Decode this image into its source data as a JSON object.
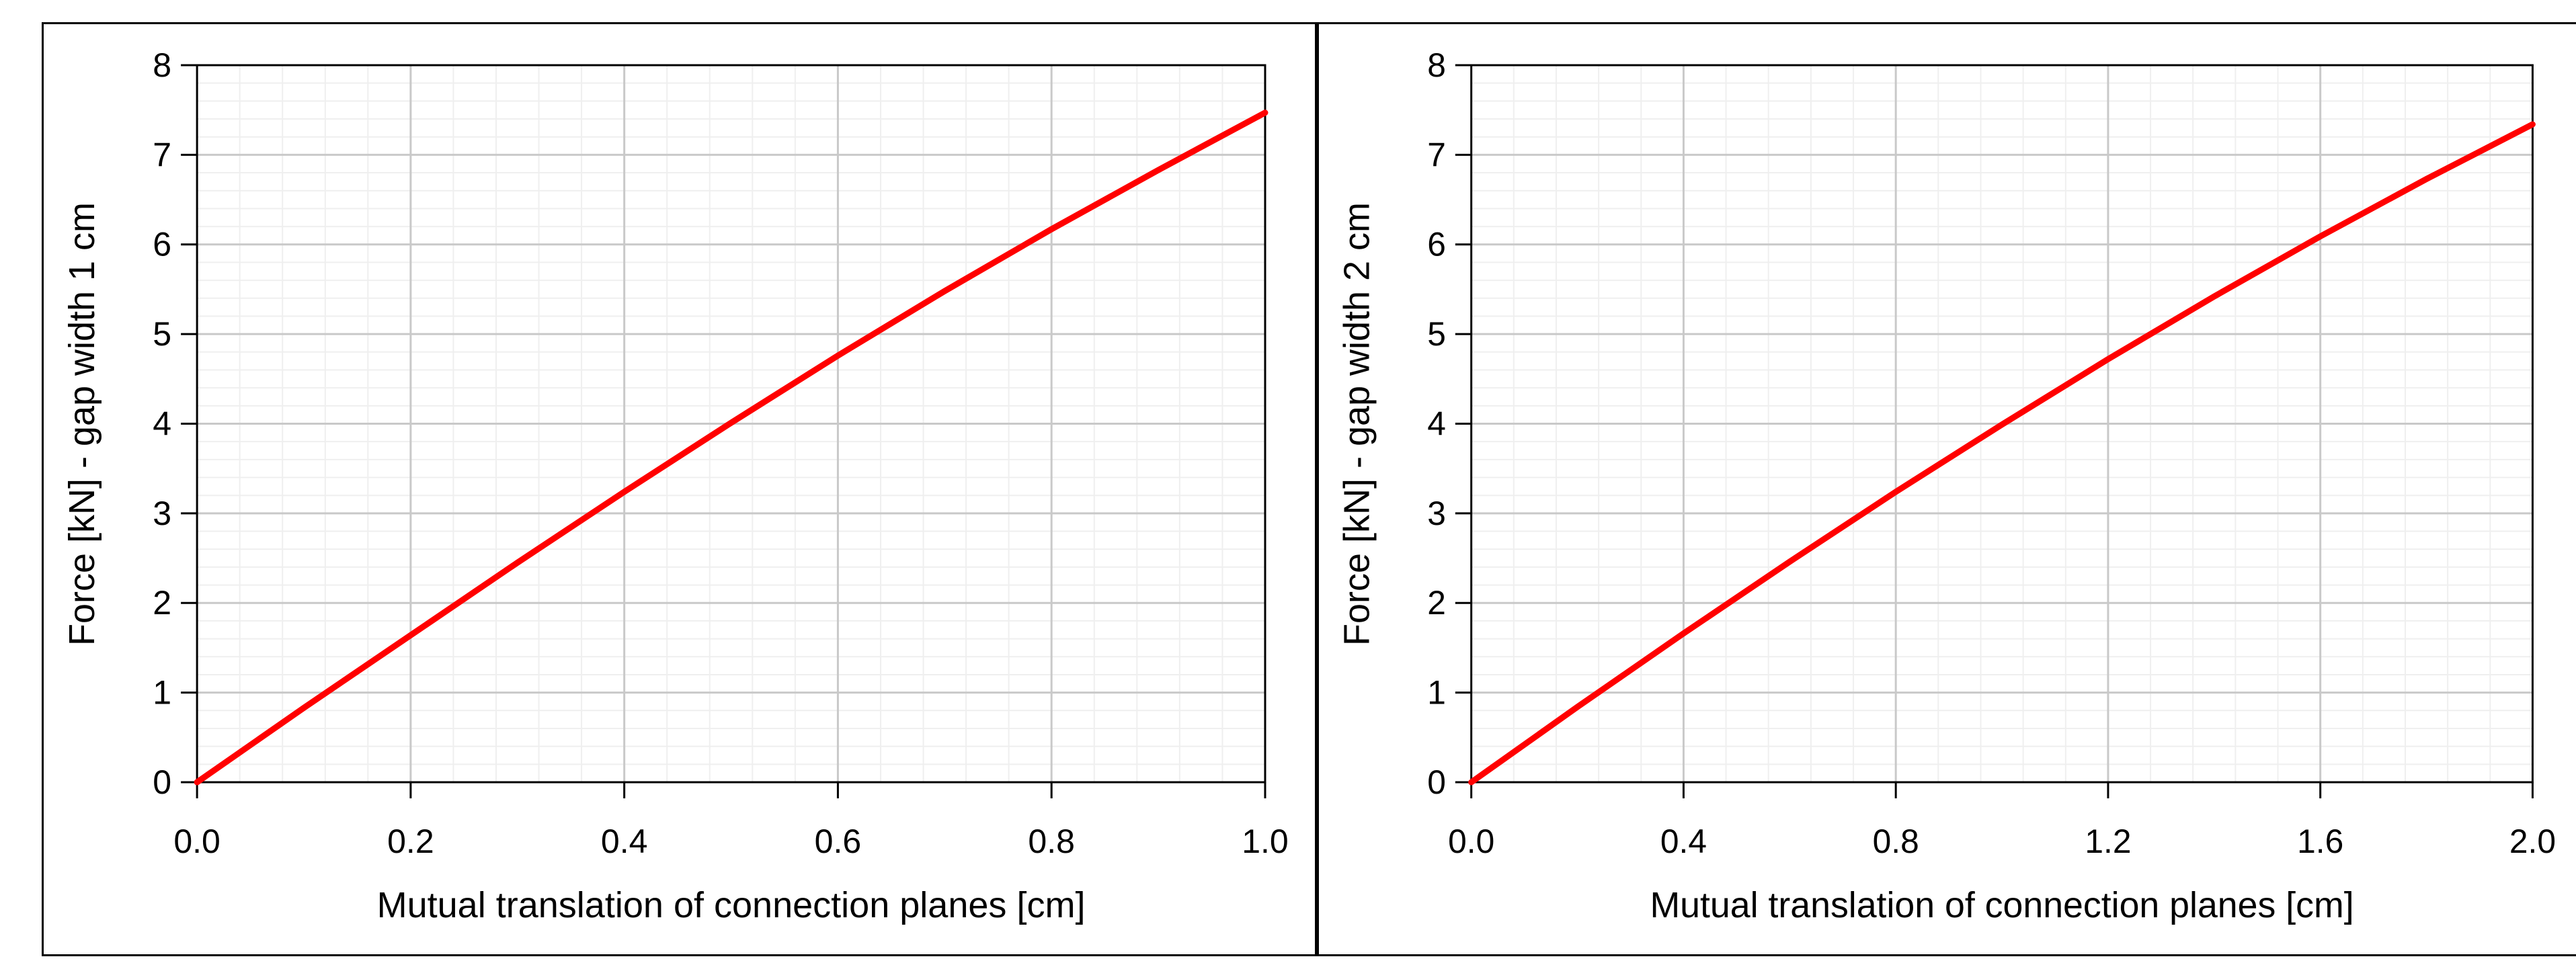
{
  "palette": {
    "background": "#FFFFFF",
    "frame": "#000000",
    "axis": "#000000",
    "tick": "#000000",
    "grid_major": "#C9C9C9",
    "grid_minor": "#EFEFEF",
    "series_red": "#FF0000"
  },
  "chart_data": [
    {
      "type": "line",
      "title": "",
      "xlabel": "Mutual translation of connection planes [cm]",
      "ylabel": "Force [kN] - gap width 1 cm",
      "xlim": [
        0.0,
        1.0
      ],
      "ylim": [
        0,
        8
      ],
      "x_tick_labels": [
        "0.0",
        "0.2",
        "0.4",
        "0.6",
        "0.8",
        "1.0"
      ],
      "x_tick_values": [
        0.0,
        0.2,
        0.4,
        0.6,
        0.8,
        1.0
      ],
      "y_tick_labels": [
        "0",
        "1",
        "2",
        "3",
        "4",
        "5",
        "6",
        "7",
        "8"
      ],
      "y_tick_values": [
        0,
        1,
        2,
        3,
        4,
        5,
        6,
        7,
        8
      ],
      "x_minor_step": 0.04,
      "y_minor_step": 0.2,
      "grid": "major+minor",
      "legend_position": "none",
      "series": [
        {
          "name": "force-vs-translation-gap-1cm",
          "color": "#FF0000",
          "x": [
            0,
            0.1,
            0.2,
            0.3,
            0.4,
            0.5,
            0.6,
            0.7,
            0.8,
            0.9,
            1.0
          ],
          "y": [
            0,
            0.83,
            1.64,
            2.45,
            3.24,
            4.01,
            4.76,
            5.48,
            6.17,
            6.83,
            7.47
          ]
        }
      ]
    },
    {
      "type": "line",
      "title": "",
      "xlabel": "Mutual translation of connection planes [cm]",
      "ylabel": "Force [kN] - gap width 2 cm",
      "xlim": [
        0.0,
        2.0
      ],
      "ylim": [
        0,
        8
      ],
      "x_tick_labels": [
        "0.0",
        "0.4",
        "0.8",
        "1.2",
        "1.6",
        "2.0"
      ],
      "x_tick_values": [
        0.0,
        0.4,
        0.8,
        1.2,
        1.6,
        2.0
      ],
      "y_tick_labels": [
        "0",
        "1",
        "2",
        "3",
        "4",
        "5",
        "6",
        "7",
        "8"
      ],
      "y_tick_values": [
        0,
        1,
        2,
        3,
        4,
        5,
        6,
        7,
        8
      ],
      "x_minor_step": 0.08,
      "y_minor_step": 0.2,
      "grid": "major+minor",
      "legend_position": "none",
      "series": [
        {
          "name": "force-vs-translation-gap-2cm",
          "color": "#FF0000",
          "x": [
            0,
            0.2,
            0.4,
            0.6,
            0.8,
            1.0,
            1.2,
            1.4,
            1.6,
            1.8,
            2.0
          ],
          "y": [
            0,
            0.84,
            1.66,
            2.46,
            3.24,
            3.99,
            4.72,
            5.42,
            6.09,
            6.73,
            7.34
          ]
        }
      ]
    }
  ]
}
